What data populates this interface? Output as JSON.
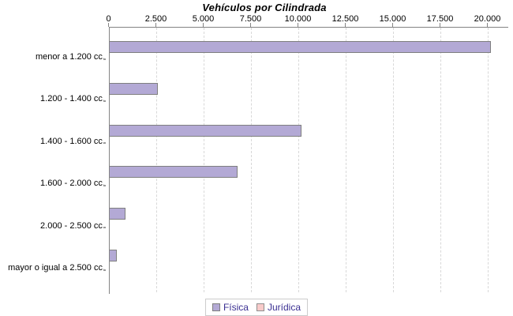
{
  "title": "Vehículos por Cilindrada",
  "chart_data": {
    "type": "bar",
    "orientation": "horizontal",
    "title": "Vehículos por Cilindrada",
    "categories": [
      "menor a 1.200 cc.",
      "1.200 - 1.400 cc.",
      "1.400 - 1.600 cc.",
      "1.600 - 2.000 cc.",
      "2.000 - 2.500 cc.",
      "mayor o igual a 2.500 cc."
    ],
    "series": [
      {
        "name": "Física",
        "color": "#b3a9d5",
        "border_color": "#7f7f7f",
        "values": [
          20100,
          2500,
          10100,
          6700,
          800,
          350
        ]
      },
      {
        "name": "Jurídica",
        "color": "#f8cbca",
        "border_color": "#8f8f8f",
        "values": [
          0,
          0,
          0,
          0,
          0,
          0
        ]
      }
    ],
    "x_axis": {
      "min": 0,
      "max": 20000,
      "tick_interval": 2500,
      "tick_labels": [
        "0",
        "2.500",
        "5.000",
        "7.500",
        "10.000",
        "12.500",
        "15.000",
        "17.500",
        "20.000"
      ]
    },
    "grid": "vertical-dashed",
    "legend_position": "bottom-center"
  },
  "colors": {
    "axis_line": "#848484",
    "gridline": "#d8d8d8",
    "legend_text": "#3a2f92",
    "legend_border": "#cccccc",
    "title_text": "#000000"
  }
}
